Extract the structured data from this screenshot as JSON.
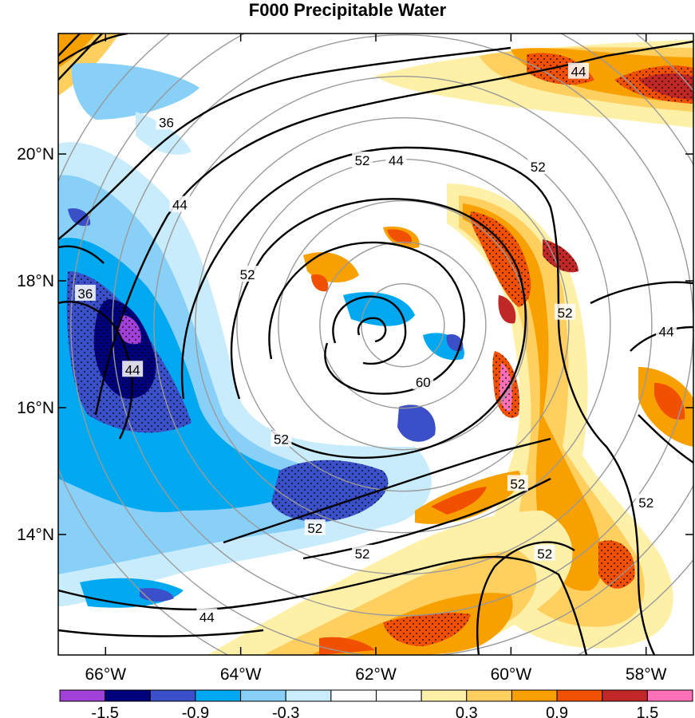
{
  "title": "F000 Precipitable Water",
  "map": {
    "lon_ticks": [
      "66°W",
      "64°W",
      "62°W",
      "60°W",
      "58°W"
    ],
    "lat_ticks": [
      "20°N",
      "18°N",
      "16°N",
      "14°N"
    ],
    "lon_range": [
      -66.7,
      -57.3
    ],
    "lat_range": [
      12.1,
      21.9
    ],
    "range_ring_center": {
      "lon": -61.6,
      "lat": 17.3
    },
    "contour_levels_labeled": [
      "36",
      "44",
      "52",
      "60"
    ],
    "contour_labels": [
      {
        "text": "44",
        "lon": -61.7,
        "lat": 19.9
      },
      {
        "text": "44",
        "lon": -59.0,
        "lat": 21.3
      },
      {
        "text": "36",
        "lon": -65.1,
        "lat": 20.5
      },
      {
        "text": "44",
        "lon": -64.9,
        "lat": 19.2
      },
      {
        "text": "52",
        "lon": -62.2,
        "lat": 19.9
      },
      {
        "text": "52",
        "lon": -59.6,
        "lat": 19.8
      },
      {
        "text": "52",
        "lon": -63.9,
        "lat": 18.1
      },
      {
        "text": "36",
        "lon": -66.3,
        "lat": 17.8
      },
      {
        "text": "44",
        "lon": -65.6,
        "lat": 16.6
      },
      {
        "text": "60",
        "lon": -61.3,
        "lat": 16.4
      },
      {
        "text": "52",
        "lon": -59.2,
        "lat": 17.5
      },
      {
        "text": "44",
        "lon": -57.7,
        "lat": 17.2
      },
      {
        "text": "52",
        "lon": -63.4,
        "lat": 15.5
      },
      {
        "text": "52",
        "lon": -59.9,
        "lat": 14.8
      },
      {
        "text": "52",
        "lon": -62.9,
        "lat": 14.1
      },
      {
        "text": "52",
        "lon": -58.0,
        "lat": 14.5
      },
      {
        "text": "52",
        "lon": -62.2,
        "lat": 13.7
      },
      {
        "text": "52",
        "lon": -59.5,
        "lat": 13.7
      },
      {
        "text": "44",
        "lon": -64.5,
        "lat": 12.7
      }
    ]
  },
  "colorbar": {
    "labels": [
      "-1.5",
      "-0.9",
      "-0.3",
      "0.3",
      "0.9",
      "1.5"
    ],
    "colors": [
      "#a040d8",
      "#00007a",
      "#3a4fc8",
      "#00a8f0",
      "#88d0f8",
      "#c8ecfc",
      "#ffffff",
      "#ffffff",
      "#fff0a8",
      "#ffd060",
      "#f8a000",
      "#f05000",
      "#c02828",
      "#ff70b8"
    ]
  },
  "shading_colors": {
    "deep_blue": "#00007a",
    "blue": "#3a4fc8",
    "cyan": "#00a8f0",
    "light_blue": "#88d0f8",
    "pale_blue": "#c8ecfc",
    "pale_yellow": "#fff0a8",
    "yellow": "#ffd060",
    "orange": "#f8a000",
    "red_orange": "#f05000",
    "dark_red": "#c02828",
    "pink": "#ff70b8",
    "purple": "#a040d8"
  }
}
